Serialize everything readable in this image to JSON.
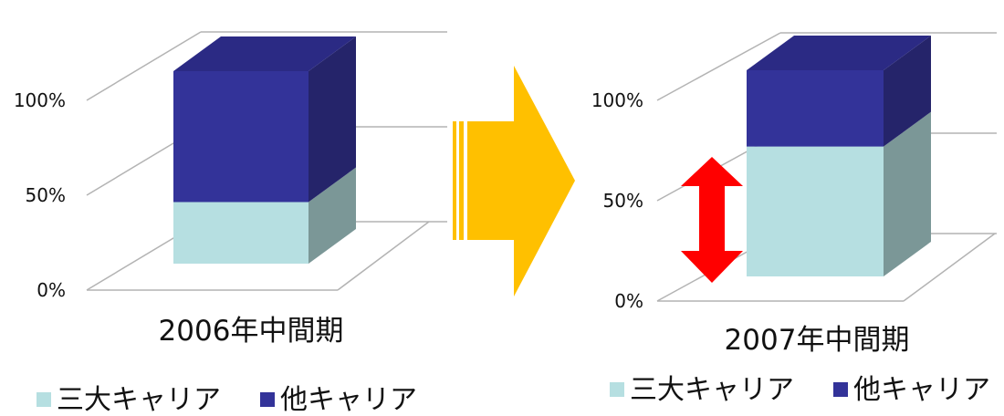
{
  "colors": {
    "three_carriers": "#b6dfe1",
    "three_carriers_side": "#7b9797",
    "other_carriers": "#333399",
    "other_carriers_side": "#25246a",
    "other_carriers_top": "#2b2a84",
    "arrow": "#ffc000",
    "red_arrow": "#ff0000",
    "grid": "#b3b3b3"
  },
  "chart_data": [
    {
      "type": "bar",
      "stacked": true,
      "three_d": true,
      "categories": [
        "2006年中間期"
      ],
      "series": [
        {
          "name": "三大キャリア",
          "values": [
            32
          ]
        },
        {
          "name": "他キャリア",
          "values": [
            68
          ]
        }
      ],
      "yticks": [
        "0%",
        "50%",
        "100%"
      ],
      "ylim": [
        0,
        100
      ],
      "grid": true,
      "legend": "bottom"
    },
    {
      "type": "bar",
      "stacked": true,
      "three_d": true,
      "categories": [
        "2007年中間期"
      ],
      "series": [
        {
          "name": "三大キャリア",
          "values": [
            63
          ]
        },
        {
          "name": "他キャリア",
          "values": [
            37
          ]
        }
      ],
      "yticks": [
        "0%",
        "50%",
        "100%"
      ],
      "ylim": [
        0,
        100
      ],
      "grid": true,
      "legend": "bottom"
    }
  ],
  "arrows": {
    "transition_arrow": "right-arrow",
    "change_indicator": "double-headed-vertical-arrow"
  }
}
